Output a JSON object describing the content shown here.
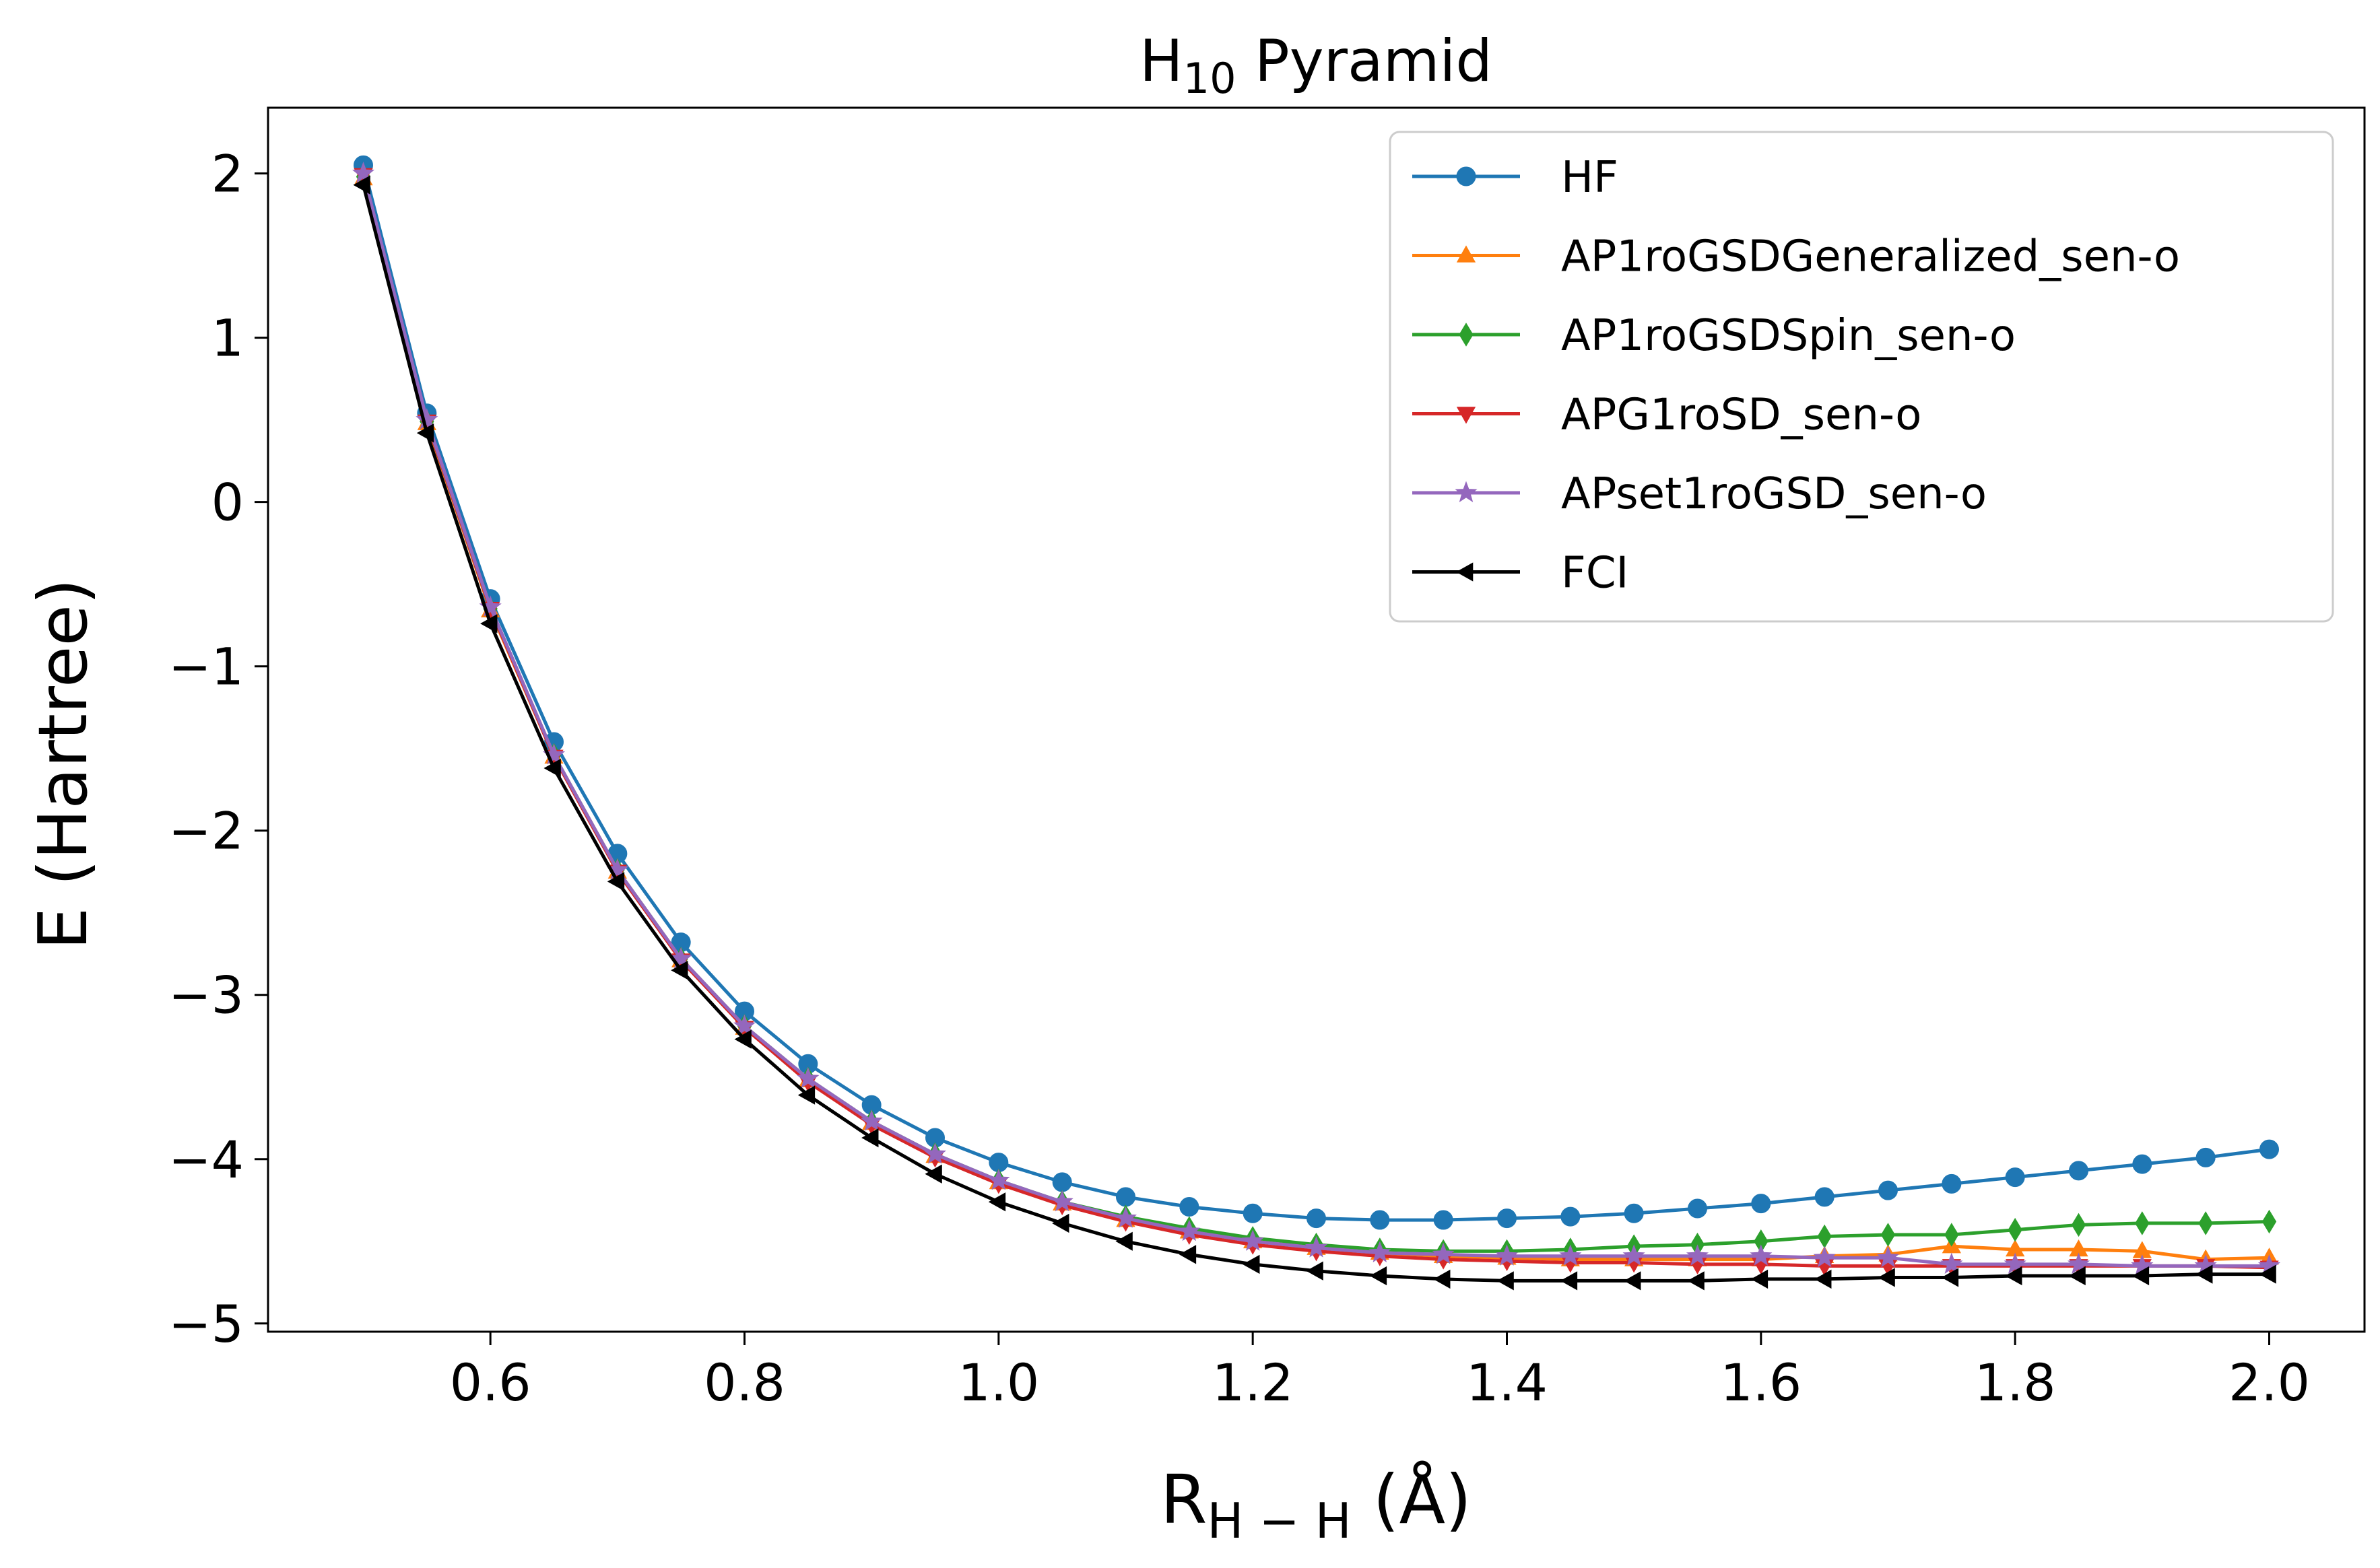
{
  "chart_data": {
    "type": "line",
    "title": {
      "main": "H",
      "sub": "10",
      "rest": " Pyramid"
    },
    "xlabel": {
      "main": "R",
      "sub": "H − H",
      "rest": " (Å)"
    },
    "ylabel": "E (Hartree)",
    "xlim": [
      0.425,
      2.075
    ],
    "ylim": [
      -5.05,
      2.4
    ],
    "xticks": [
      0.6,
      0.8,
      1.0,
      1.2,
      1.4,
      1.6,
      1.8,
      2.0
    ],
    "xtick_labels": [
      "0.6",
      "0.8",
      "1.0",
      "1.2",
      "1.4",
      "1.6",
      "1.8",
      "2.0"
    ],
    "yticks": [
      2,
      1,
      0,
      -1,
      -2,
      -3,
      -4,
      -5
    ],
    "ytick_labels": [
      "2",
      "1",
      "0",
      "−1",
      "−2",
      "−3",
      "−4",
      "−5"
    ],
    "grid": false,
    "legend_position": "top-right",
    "x": [
      0.5,
      0.55,
      0.6,
      0.65,
      0.7,
      0.75,
      0.8,
      0.85,
      0.9,
      0.95,
      1.0,
      1.05,
      1.1,
      1.15,
      1.2,
      1.25,
      1.3,
      1.35,
      1.4,
      1.45,
      1.5,
      1.55,
      1.6,
      1.65,
      1.7,
      1.75,
      1.8,
      1.85,
      1.9,
      1.95,
      2.0
    ],
    "series": [
      {
        "name": "HF",
        "color": "#1f77b4",
        "marker": "circle",
        "values": [
          2.05,
          0.54,
          -0.59,
          -1.46,
          -2.14,
          -2.68,
          -3.1,
          -3.42,
          -3.67,
          -3.87,
          -4.02,
          -4.14,
          -4.23,
          -4.29,
          -4.33,
          -4.36,
          -4.37,
          -4.37,
          -4.36,
          -4.35,
          -4.33,
          -4.3,
          -4.27,
          -4.23,
          -4.19,
          -4.15,
          -4.11,
          -4.07,
          -4.03,
          -3.99,
          -3.94
        ]
      },
      {
        "name": "AP1roGSDGeneralized_sen-o",
        "color": "#ff7f0e",
        "marker": "triangle-up",
        "values": [
          1.97,
          0.48,
          -0.66,
          -1.55,
          -2.25,
          -2.79,
          -3.2,
          -3.52,
          -3.78,
          -3.98,
          -4.14,
          -4.27,
          -4.37,
          -4.44,
          -4.5,
          -4.54,
          -4.57,
          -4.59,
          -4.6,
          -4.61,
          -4.61,
          -4.61,
          -4.61,
          -4.59,
          -4.58,
          -4.53,
          -4.55,
          -4.55,
          -4.56,
          -4.61,
          -4.6
        ]
      },
      {
        "name": "AP1roGSDSpin_sen-o",
        "color": "#2ca02c",
        "marker": "diamond",
        "values": [
          1.98,
          0.49,
          -0.65,
          -1.54,
          -2.24,
          -2.78,
          -3.19,
          -3.51,
          -3.77,
          -3.97,
          -4.13,
          -4.26,
          -4.35,
          -4.42,
          -4.48,
          -4.52,
          -4.55,
          -4.56,
          -4.56,
          -4.55,
          -4.53,
          -4.52,
          -4.5,
          -4.47,
          -4.46,
          -4.46,
          -4.43,
          -4.4,
          -4.39,
          -4.39,
          -4.38
        ]
      },
      {
        "name": "APG1roSD_sen-o",
        "color": "#d62728",
        "marker": "triangle-down",
        "values": [
          1.99,
          0.49,
          -0.65,
          -1.55,
          -2.25,
          -2.79,
          -3.2,
          -3.53,
          -3.79,
          -3.99,
          -4.15,
          -4.28,
          -4.38,
          -4.46,
          -4.52,
          -4.56,
          -4.59,
          -4.61,
          -4.62,
          -4.63,
          -4.63,
          -4.64,
          -4.64,
          -4.65,
          -4.65,
          -4.65,
          -4.65,
          -4.65,
          -4.65,
          -4.65,
          -4.66
        ]
      },
      {
        "name": "APset1roGSD_sen-o",
        "color": "#9467bd",
        "marker": "star",
        "values": [
          2.0,
          0.5,
          -0.64,
          -1.54,
          -2.24,
          -2.78,
          -3.19,
          -3.51,
          -3.77,
          -3.97,
          -4.13,
          -4.26,
          -4.36,
          -4.44,
          -4.5,
          -4.54,
          -4.57,
          -4.58,
          -4.59,
          -4.59,
          -4.59,
          -4.59,
          -4.59,
          -4.6,
          -4.6,
          -4.64,
          -4.64,
          -4.64,
          -4.65,
          -4.65,
          -4.65
        ]
      },
      {
        "name": "FCI",
        "color": "#000000",
        "marker": "triangle-left",
        "values": [
          1.93,
          0.42,
          -0.74,
          -1.62,
          -2.31,
          -2.85,
          -3.27,
          -3.61,
          -3.87,
          -4.09,
          -4.26,
          -4.39,
          -4.5,
          -4.58,
          -4.64,
          -4.68,
          -4.71,
          -4.73,
          -4.74,
          -4.74,
          -4.74,
          -4.74,
          -4.73,
          -4.73,
          -4.72,
          -4.72,
          -4.71,
          -4.71,
          -4.71,
          -4.7,
          -4.7
        ]
      }
    ]
  }
}
